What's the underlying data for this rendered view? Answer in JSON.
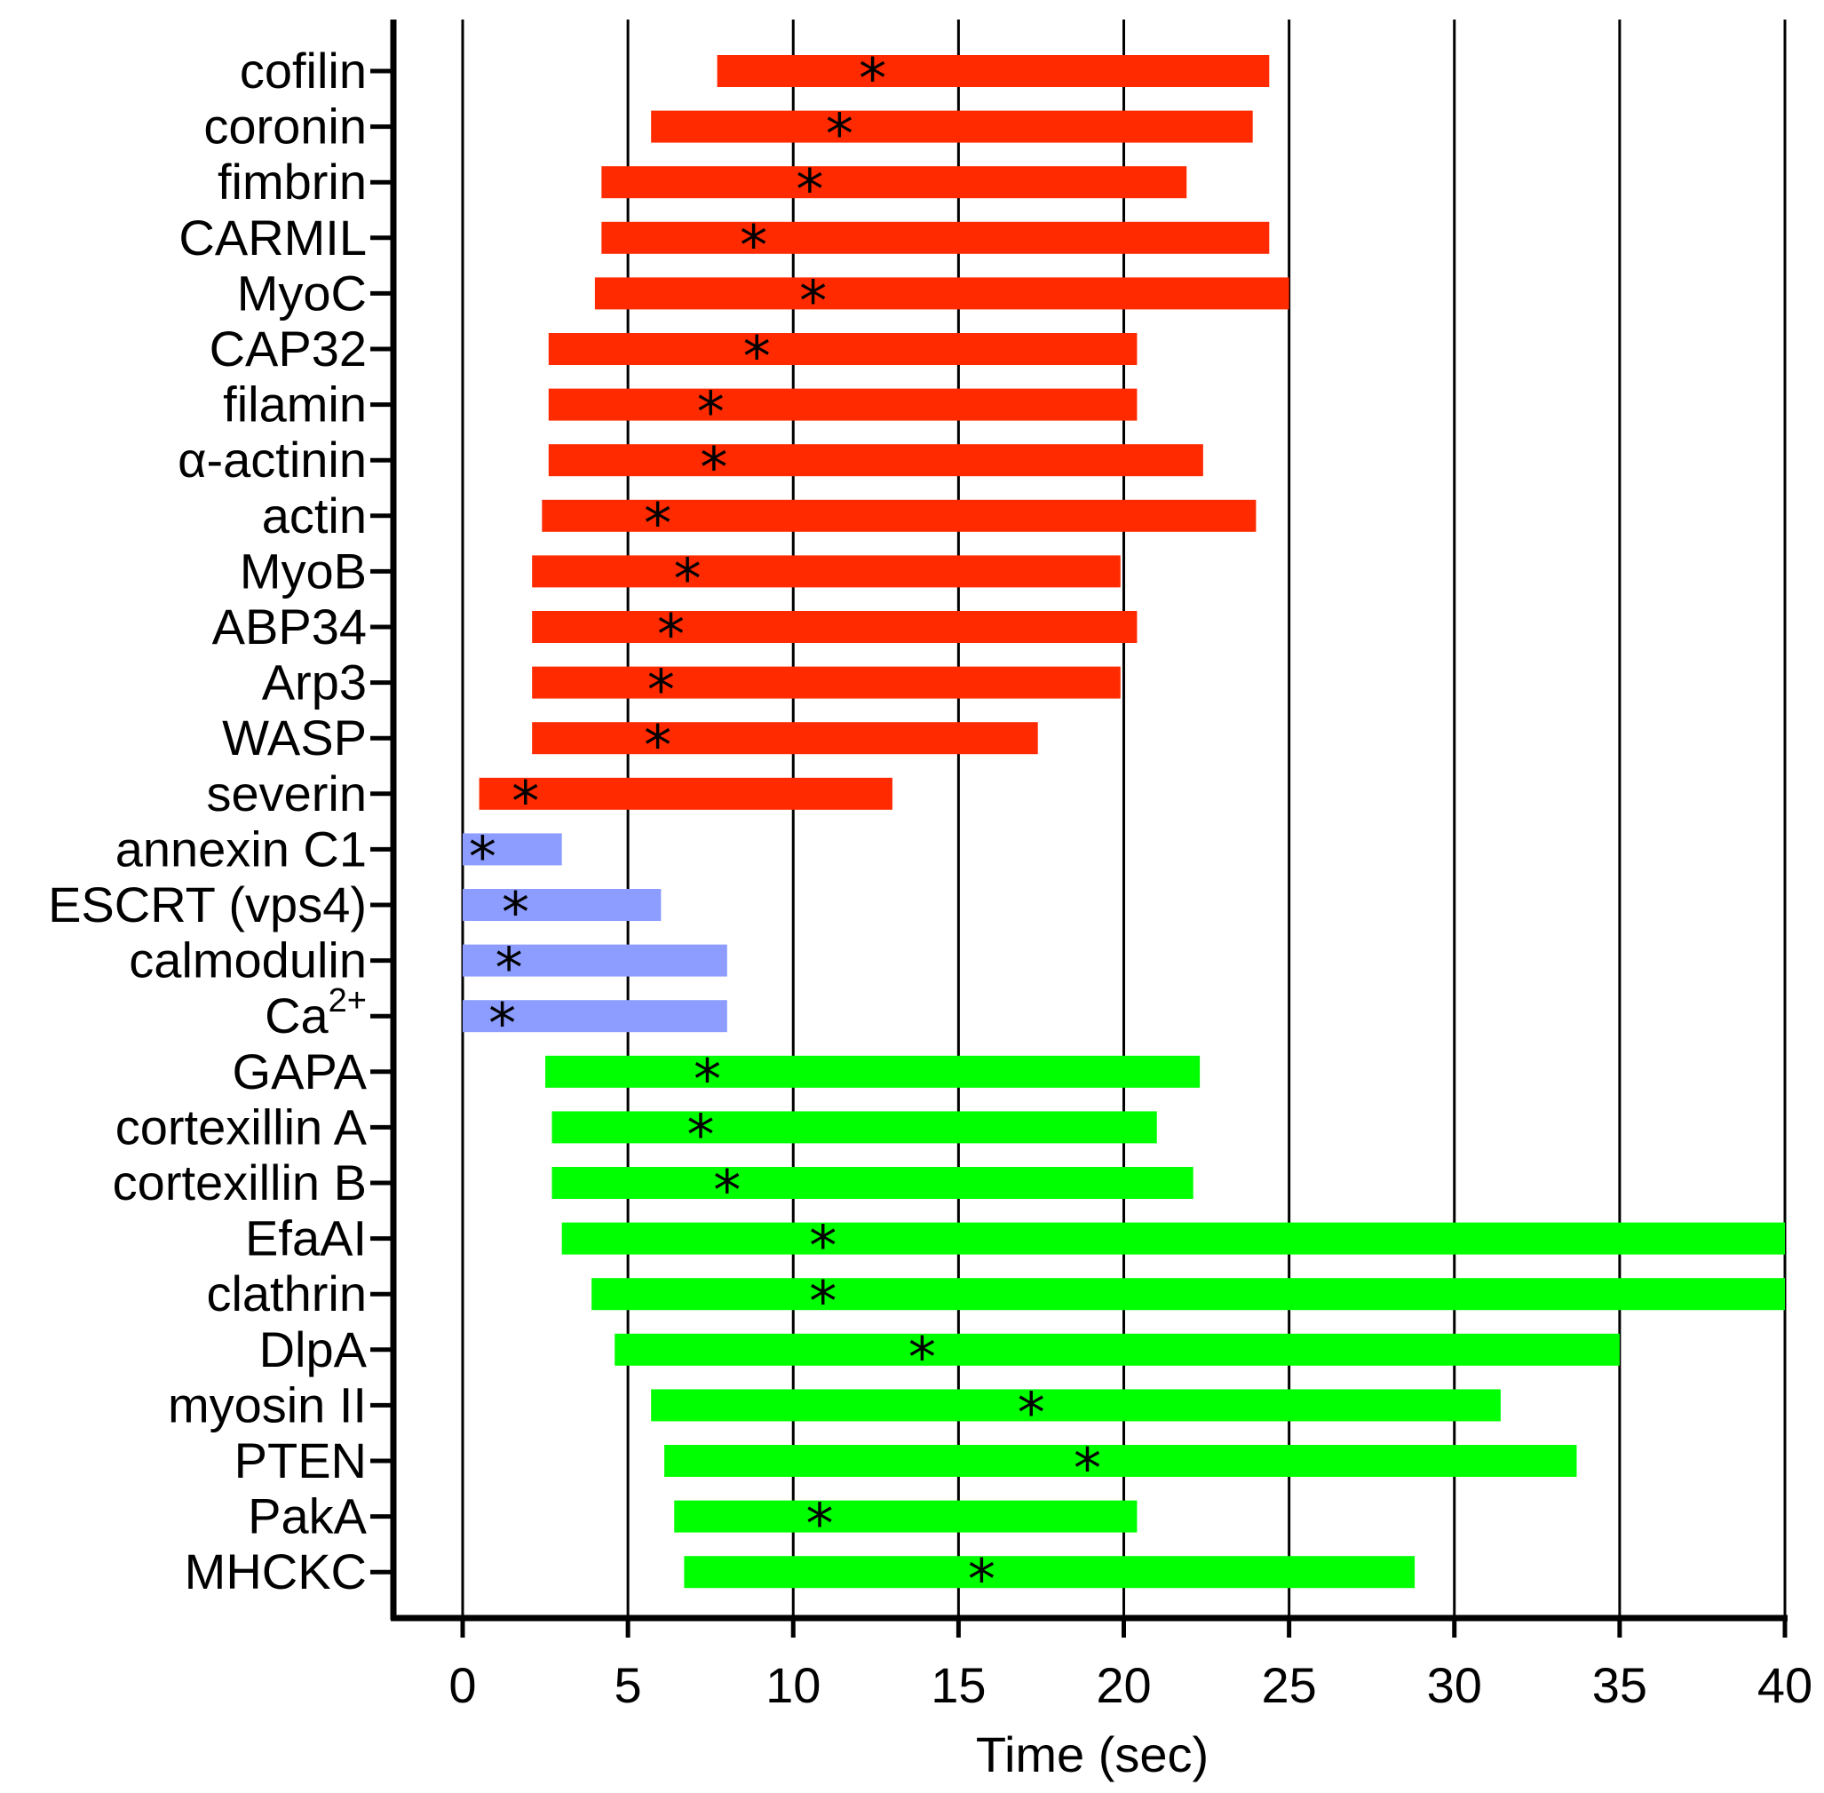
{
  "chart_data": {
    "type": "bar",
    "subtype": "horizontal-range",
    "xlabel": "Time (sec)",
    "xlim": [
      -2,
      40
    ],
    "xticks": [
      0,
      5,
      10,
      15,
      20,
      25,
      30,
      35,
      40
    ],
    "grid": "vertical",
    "marker": "*",
    "colors": {
      "red": "#ff2a00",
      "blue": "#8c9cff",
      "green": "#00ff00"
    },
    "rows": [
      {
        "label": "cofilin",
        "start": 7.7,
        "end": 24.4,
        "peak": 12.4,
        "color": "red"
      },
      {
        "label": "coronin",
        "start": 5.7,
        "end": 23.9,
        "peak": 11.4,
        "color": "red"
      },
      {
        "label": "fimbrin",
        "start": 4.2,
        "end": 21.9,
        "peak": 10.5,
        "color": "red"
      },
      {
        "label": "CARMIL",
        "start": 4.2,
        "end": 24.4,
        "peak": 8.8,
        "color": "red"
      },
      {
        "label": "MyoC",
        "start": 4.0,
        "end": 25.0,
        "peak": 10.6,
        "color": "red"
      },
      {
        "label": "CAP32",
        "start": 2.6,
        "end": 20.4,
        "peak": 8.9,
        "color": "red"
      },
      {
        "label": "filamin",
        "start": 2.6,
        "end": 20.4,
        "peak": 7.5,
        "color": "red"
      },
      {
        "label": "α-actinin",
        "start": 2.6,
        "end": 22.4,
        "peak": 7.6,
        "color": "red"
      },
      {
        "label": "actin",
        "start": 2.4,
        "end": 24.0,
        "peak": 5.9,
        "color": "red"
      },
      {
        "label": "MyoB",
        "start": 2.1,
        "end": 19.9,
        "peak": 6.8,
        "color": "red"
      },
      {
        "label": "ABP34",
        "start": 2.1,
        "end": 20.4,
        "peak": 6.3,
        "color": "red"
      },
      {
        "label": "Arp3",
        "start": 2.1,
        "end": 19.9,
        "peak": 6.0,
        "color": "red"
      },
      {
        "label": "WASP",
        "start": 2.1,
        "end": 17.4,
        "peak": 5.9,
        "color": "red"
      },
      {
        "label": "severin",
        "start": 0.5,
        "end": 13.0,
        "peak": 1.9,
        "color": "red"
      },
      {
        "label": "annexin C1",
        "start": 0.0,
        "end": 3.0,
        "peak": 0.6,
        "color": "blue"
      },
      {
        "label": "ESCRT (vps4)",
        "start": 0.0,
        "end": 6.0,
        "peak": 1.6,
        "color": "blue"
      },
      {
        "label": "calmodulin",
        "start": 0.0,
        "end": 8.0,
        "peak": 1.4,
        "color": "blue"
      },
      {
        "label": "Ca",
        "label_sup": "2+",
        "start": 0.0,
        "end": 8.0,
        "peak": 1.2,
        "color": "blue"
      },
      {
        "label": "GAPA",
        "start": 2.5,
        "end": 22.3,
        "peak": 7.4,
        "color": "green"
      },
      {
        "label": "cortexillin A",
        "start": 2.7,
        "end": 21.0,
        "peak": 7.2,
        "color": "green"
      },
      {
        "label": "cortexillin B",
        "start": 2.7,
        "end": 22.1,
        "peak": 8.0,
        "color": "green"
      },
      {
        "label": "EfaAI",
        "start": 3.0,
        "end": 40.0,
        "peak": 10.9,
        "color": "green"
      },
      {
        "label": "clathrin",
        "start": 3.9,
        "end": 40.0,
        "peak": 10.9,
        "color": "green"
      },
      {
        "label": "DlpA",
        "start": 4.6,
        "end": 35.0,
        "peak": 13.9,
        "color": "green"
      },
      {
        "label": "myosin II",
        "start": 5.7,
        "end": 31.4,
        "peak": 17.2,
        "color": "green"
      },
      {
        "label": "PTEN",
        "start": 6.1,
        "end": 33.7,
        "peak": 18.9,
        "color": "green"
      },
      {
        "label": "PakA",
        "start": 6.4,
        "end": 20.4,
        "peak": 10.8,
        "color": "green"
      },
      {
        "label": "MHCKC",
        "start": 6.7,
        "end": 28.8,
        "peak": 15.7,
        "color": "green"
      }
    ]
  }
}
